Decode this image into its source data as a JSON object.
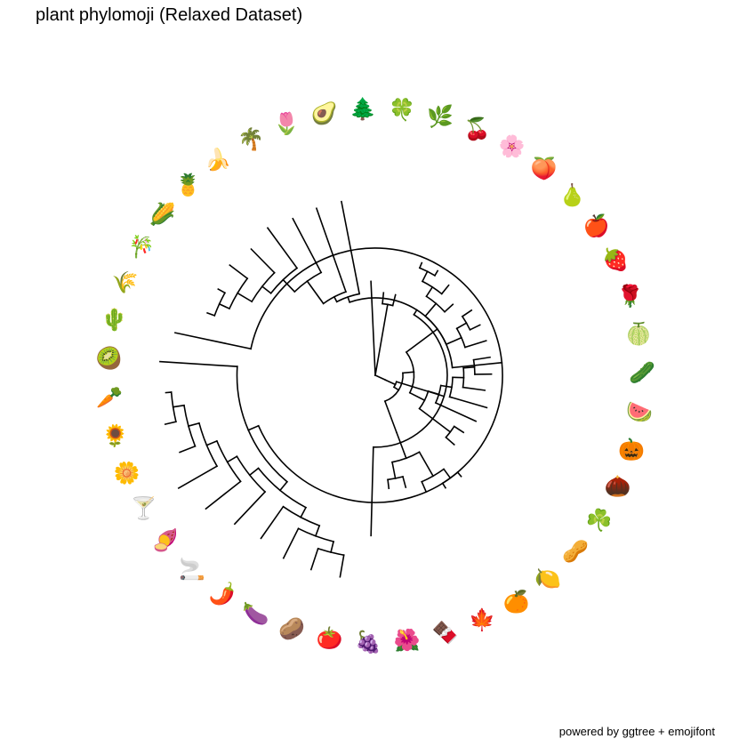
{
  "title": "plant phylomoji (Relaxed Dataset)",
  "caption": "powered by ggtree + emojifont",
  "layout": "circular",
  "tips": [
    {
      "id": "cactus",
      "emoji": "🌵",
      "name": "cactus"
    },
    {
      "id": "wheat",
      "emoji": "🌾",
      "name": "ear of rice"
    },
    {
      "id": "bamboo",
      "emoji": "🎋",
      "name": "tanabata tree"
    },
    {
      "id": "corn",
      "emoji": "🌽",
      "name": "corn"
    },
    {
      "id": "pineapple",
      "emoji": "🍍",
      "name": "pineapple"
    },
    {
      "id": "banana",
      "emoji": "🍌",
      "name": "banana"
    },
    {
      "id": "palm",
      "emoji": "🌴",
      "name": "palm tree"
    },
    {
      "id": "tulip",
      "emoji": "🌷",
      "name": "tulip"
    },
    {
      "id": "avocado",
      "emoji": "🥑",
      "name": "avocado"
    },
    {
      "id": "evergreen",
      "emoji": "🌲",
      "name": "evergreen tree"
    },
    {
      "id": "clover4",
      "emoji": "🍀",
      "name": "four leaf clover"
    },
    {
      "id": "herb",
      "emoji": "🌿",
      "name": "herb"
    },
    {
      "id": "cherries",
      "emoji": "🍒",
      "name": "cherries"
    },
    {
      "id": "blossom",
      "emoji": "🌸",
      "name": "cherry blossom"
    },
    {
      "id": "peach",
      "emoji": "🍑",
      "name": "peach"
    },
    {
      "id": "pear",
      "emoji": "🍐",
      "name": "pear"
    },
    {
      "id": "apple",
      "emoji": "🍎",
      "name": "red apple"
    },
    {
      "id": "strawberry",
      "emoji": "🍓",
      "name": "strawberry"
    },
    {
      "id": "rose",
      "emoji": "🌹",
      "name": "rose"
    },
    {
      "id": "melon",
      "emoji": "🍈",
      "name": "melon"
    },
    {
      "id": "cucumber",
      "emoji": "🥒",
      "name": "cucumber"
    },
    {
      "id": "watermelon",
      "emoji": "🍉",
      "name": "watermelon"
    },
    {
      "id": "pumpkin",
      "emoji": "🎃",
      "name": "jack-o-lantern"
    },
    {
      "id": "chestnut",
      "emoji": "🌰",
      "name": "chestnut"
    },
    {
      "id": "shamrock",
      "emoji": "☘️",
      "name": "shamrock"
    },
    {
      "id": "peanut",
      "emoji": "🥜",
      "name": "peanuts"
    },
    {
      "id": "lemon",
      "emoji": "🍋",
      "name": "lemon"
    },
    {
      "id": "tangerine",
      "emoji": "🍊",
      "name": "tangerine"
    },
    {
      "id": "maple",
      "emoji": "🍁",
      "name": "maple leaf"
    },
    {
      "id": "chocolate",
      "emoji": "🍫",
      "name": "chocolate bar"
    },
    {
      "id": "hibiscus",
      "emoji": "🌺",
      "name": "hibiscus"
    },
    {
      "id": "grapes",
      "emoji": "🍇",
      "name": "grapes"
    },
    {
      "id": "tomato",
      "emoji": "🍅",
      "name": "tomato"
    },
    {
      "id": "potato",
      "emoji": "🥔",
      "name": "potato"
    },
    {
      "id": "eggplant",
      "emoji": "🍆",
      "name": "eggplant"
    },
    {
      "id": "pepper",
      "emoji": "🌶️",
      "name": "hot pepper"
    },
    {
      "id": "cigarette",
      "emoji": "🚬",
      "name": "cigarette"
    },
    {
      "id": "sweetpotato",
      "emoji": "🍠",
      "name": "roasted sweet potato"
    },
    {
      "id": "cocktail",
      "emoji": "🍸",
      "name": "cocktail glass"
    },
    {
      "id": "daisy",
      "emoji": "🌼",
      "name": "blossom"
    },
    {
      "id": "sunflower",
      "emoji": "🌻",
      "name": "sunflower"
    },
    {
      "id": "carrot",
      "emoji": "🥕",
      "name": "carrot"
    },
    {
      "id": "kiwi",
      "emoji": "🥝",
      "name": "kiwifruit"
    }
  ],
  "tree": {
    "c": [
      {
        "d": 0.1,
        "c": [
          {
            "d": 0.1,
            "c": [
              {
                "d": 0.45,
                "c": [
                  {
                    "d": 0.05,
                    "c": [
                      {
                        "d": 0.45,
                        "c": [
                          {
                            "d": 0.1,
                            "c": [
                              {
                                "d": 0.1,
                                "c": [
                                  {
                                    "d": 0.1,
                                    "c": [
                                      {
                                        "d": 0.1,
                                        "c": [
                                          {
                                            "d": 0.1,
                                            "c": [
                                              {
                                                "d": 0.4,
                                                "t": "cocktail"
                                              },
                                              {
                                                "d": 0.1,
                                                "c": [
                                                  {
                                                    "d": 0.15,
                                                    "t": "daisy"
                                                  },
                                                  {
                                                    "d": 0.1,
                                                    "c": [
                                                      {
                                                        "d": 0.1,
                                                        "t": "sunflower"
                                                      },
                                                      {
                                                        "d": 0.05,
                                                        "t": "carrot"
                                                      }
                                                    ]
                                                  }
                                                ]
                                              }
                                            ]
                                          },
                                          {
                                            "d": 0.4,
                                            "t": "sweetpotato"
                                          }
                                        ]
                                      },
                                      {
                                        "d": 0.4,
                                        "t": "cigarette"
                                      }
                                    ]
                                  },
                                  {
                                    "d": 0.1,
                                    "c": [
                                      {
                                        "d": 0.35,
                                        "t": "pepper"
                                      },
                                      {
                                        "d": 0.1,
                                        "c": [
                                          {
                                            "d": 0.3,
                                            "t": "eggplant"
                                          },
                                          {
                                            "d": 0.1,
                                            "c": [
                                              {
                                                "d": 0.2,
                                                "t": "potato"
                                              },
                                              {
                                                "d": 0.2,
                                                "t": "tomato"
                                              }
                                            ]
                                          }
                                        ]
                                      }
                                    ]
                                  }
                                ]
                              },
                              {
                                "d": 0.7,
                                "t": "kiwi"
                              }
                            ]
                          },
                          {
                            "d": 0.7,
                            "t": "cactus"
                          }
                        ]
                      },
                      {
                        "d": 0.05,
                        "c": [
                          {
                            "d": 0.05,
                            "c": [
                              {
                                "d": 0.25,
                                "c": [
                                  {
                                    "d": 0.15,
                                    "c": [
                                      {
                                        "d": 0.1,
                                        "c": [
                                          {
                                            "d": 0.15,
                                            "c": [
                                              {
                                                "d": 0.1,
                                                "c": [
                                                  {
                                                    "d": 0.07,
                                                    "t": "wheat"
                                                  },
                                                  {
                                                    "d": 0.07,
                                                    "t": "bamboo"
                                                  }
                                                ]
                                              },
                                              {
                                                "d": 0.2,
                                                "t": "corn"
                                              }
                                            ]
                                          },
                                          {
                                            "d": 0.3,
                                            "t": "pineapple"
                                          }
                                        ]
                                      },
                                      {
                                        "d": 0.45,
                                        "t": "banana"
                                      }
                                    ]
                                  },
                                  {
                                    "d": 0.55,
                                    "t": "palm"
                                  }
                                ]
                              },
                              {
                                "d": 0.8,
                                "t": "tulip"
                              }
                            ]
                          },
                          {
                            "d": 0.85,
                            "t": "avocado"
                          }
                        ]
                      }
                    ]
                  },
                  {
                    "d": 0.8,
                    "t": "grapes"
                  }
                ]
              },
              {
                "d": 0.05,
                "c": [
                  {
                    "d": 0.3,
                    "c": [
                      {
                        "d": 0.1,
                        "c": [
                          {
                            "d": 0.15,
                            "c": [
                              {
                                "d": 0.15,
                                "c": [
                                  {
                                    "d": 0.08,
                                    "t": "hibiscus"
                                  },
                                  {
                                    "d": 0.1,
                                    "t": "chocolate"
                                  }
                                ]
                              },
                              {
                                "d": 0.25,
                                "c": [
                                  {
                                    "d": 0.1,
                                    "t": "maple"
                                  },
                                  {
                                    "d": 0.1,
                                    "c": [
                                      {
                                        "d": 0.05,
                                        "t": "tangerine"
                                      },
                                      {
                                        "d": 0.05,
                                        "t": "lemon"
                                      }
                                    ]
                                  }
                                ]
                              }
                            ]
                          }
                        ]
                      }
                    ]
                  },
                  {
                    "d": 0.1,
                    "c": [
                      {
                        "d": 0.15,
                        "c": [
                          {
                            "d": 0.35,
                            "c": [
                              {
                                "d": 0.1,
                                "t": "peanut"
                              },
                              {
                                "d": 0.1,
                                "t": "shamrock"
                              }
                            ]
                          },
                          {
                            "d": 0.1,
                            "c": [
                              {
                                "d": 0.4,
                                "t": "chestnut"
                              },
                              {
                                "d": 0.1,
                                "c": [
                                  {
                                    "d": 0.35,
                                    "t": "pumpkin"
                                  },
                                  {
                                    "d": 0.1,
                                    "c": [
                                      {
                                        "d": 0.2,
                                        "t": "watermelon"
                                      },
                                      {
                                        "d": 0.1,
                                        "c": [
                                          {
                                            "d": 0.15,
                                            "t": "cucumber"
                                          },
                                          {
                                            "d": 0.15,
                                            "t": "melon"
                                          }
                                        ]
                                      }
                                    ]
                                  }
                                ]
                              }
                            ]
                          }
                        ]
                      },
                      {
                        "d": 0.35,
                        "c": [
                          {
                            "d": 0.15,
                            "c": [
                              {
                                "d": 0.2,
                                "t": "rose"
                              },
                              {
                                "d": 0.1,
                                "c": [
                                  {
                                    "d": 0.1,
                                    "t": "strawberry"
                                  },
                                  {
                                    "d": 0.1,
                                    "t": "apple"
                                  }
                                ]
                              }
                            ]
                          },
                          {
                            "d": 0.15,
                            "c": [
                              {
                                "d": 0.1,
                                "t": "pear"
                              },
                              {
                                "d": 0.1,
                                "c": [
                                  {
                                    "d": 0.1,
                                    "t": "peach"
                                  },
                                  {
                                    "d": 0.1,
                                    "c": [
                                      {
                                        "d": 0.05,
                                        "t": "blossom"
                                      },
                                      {
                                        "d": 0.05,
                                        "t": "cherries"
                                      }
                                    ]
                                  }
                                ]
                              }
                            ]
                          }
                        ]
                      }
                    ]
                  }
                ]
              }
            ]
          }
        ]
      },
      {
        "d": 0.85,
        "t": "evergreen"
      },
      {
        "d": 0.65,
        "c": [
          {
            "d": 0.1,
            "t": "clover4"
          },
          {
            "d": 0.1,
            "t": "herb"
          }
        ]
      }
    ]
  }
}
